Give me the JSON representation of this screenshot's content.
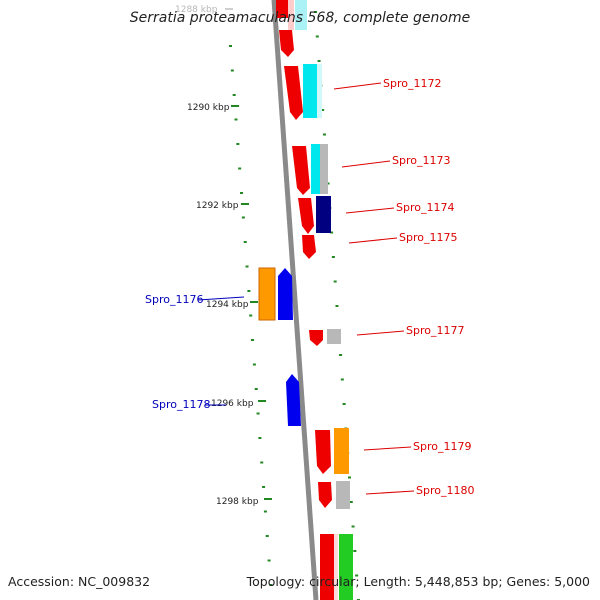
{
  "title": "Serratia proteamaculans 568, complete genome",
  "footer": {
    "accession": "Accession: NC_009832",
    "topology": "Topology: circular; Length: 5,448,853 bp; Genes: 5,000"
  },
  "colors": {
    "backbone": "#8a8a8a",
    "tick": "#228822",
    "red_label": "#dd0000",
    "blue_label": "#0000bb",
    "gene_red": "#ee0000",
    "gene_cyan": "#00e8ee",
    "gene_gray": "#b8b8b8",
    "gene_navy": "#000080",
    "gene_blue": "#0000ee",
    "gene_orange": "#ff9900",
    "gene_green": "#22cc22"
  },
  "ticks": {
    "major": [
      "1288 kbp",
      "1290 kbp",
      "1292 kbp",
      "1294 kbp",
      "1296 kbp",
      "1298 kbp"
    ]
  },
  "genes": {
    "spro_1172": {
      "label": "Spro_1172"
    },
    "spro_1173": {
      "label": "Spro_1173"
    },
    "spro_1174": {
      "label": "Spro_1174"
    },
    "spro_1175": {
      "label": "Spro_1175"
    },
    "spro_1176": {
      "label": "Spro_1176"
    },
    "spro_1177": {
      "label": "Spro_1177"
    },
    "spro_1178": {
      "label": "Spro_1178"
    },
    "spro_1179": {
      "label": "Spro_1179"
    },
    "spro_1180": {
      "label": "Spro_1180"
    }
  }
}
